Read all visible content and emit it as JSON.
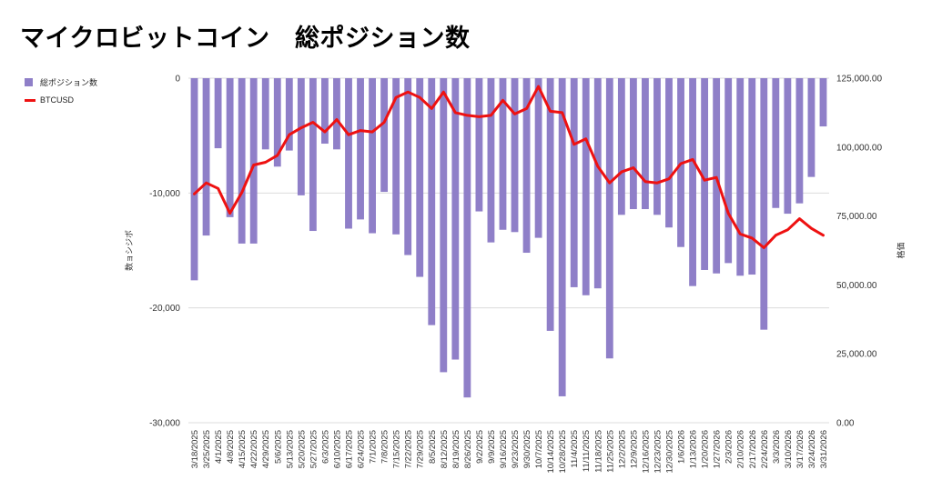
{
  "title": "マイクロビットコイン　総ポジション数",
  "legend": {
    "bar_label": "総ポジション数",
    "line_label": "BTCUSD"
  },
  "colors": {
    "bar": "#8f7fc8",
    "line": "#ee1111",
    "grid": "#dcdcdc",
    "text": "#333333"
  },
  "chart_data": {
    "type": "bar+line",
    "title": "マイクロビットコイン　総ポジション数",
    "xlabel": "",
    "ylabel_left": "数ョシジポ",
    "ylabel_right": "格価",
    "ylim_left": [
      -30000,
      0
    ],
    "ylim_right": [
      0,
      125000
    ],
    "left_ticks": [
      0,
      -10000,
      -20000,
      -30000
    ],
    "left_tick_labels": [
      "0",
      "-10,000",
      "-20,000",
      "-30,000"
    ],
    "right_ticks": [
      125000,
      100000,
      75000,
      50000,
      25000,
      0
    ],
    "right_tick_labels": [
      "125,000.00",
      "100,000.00",
      "75,000.00",
      "50,000.00",
      "25,000.00",
      "0.00"
    ],
    "categories": [
      "3/18/2025",
      "3/25/2025",
      "4/1/2025",
      "4/8/2025",
      "4/15/2025",
      "4/22/2025",
      "4/29/2025",
      "5/6/2025",
      "5/13/2025",
      "5/20/2025",
      "5/27/2025",
      "6/3/2025",
      "6/10/2025",
      "6/17/2025",
      "6/24/2025",
      "7/1/2025",
      "7/8/2025",
      "7/15/2025",
      "7/22/2025",
      "7/29/2025",
      "8/5/2025",
      "8/12/2025",
      "8/19/2025",
      "8/26/2025",
      "9/2/2025",
      "9/9/2025",
      "9/16/2025",
      "9/23/2025",
      "9/30/2025",
      "10/7/2025",
      "10/14/2025",
      "10/28/2025",
      "11/4/2025",
      "11/11/2025",
      "11/18/2025",
      "11/25/2025",
      "12/2/2025",
      "12/9/2025",
      "12/16/2025",
      "12/23/2025",
      "12/30/2025",
      "1/6/2026",
      "1/13/2026",
      "1/20/2026",
      "1/27/2026",
      "2/3/2026",
      "2/10/2026",
      "2/17/2026",
      "2/24/2026",
      "3/3/2026",
      "3/10/2026",
      "3/17/2026",
      "3/24/2026",
      "3/31/2026"
    ],
    "series": [
      {
        "name": "総ポジション数",
        "type": "bar",
        "values": [
          -17600,
          -13700,
          -6100,
          -12100,
          -14400,
          -14400,
          -6200,
          -7700,
          -6300,
          -10200,
          -13300,
          -5700,
          -6200,
          -13100,
          -12300,
          -13500,
          -9900,
          -13600,
          -15400,
          -17300,
          -21500,
          -25600,
          -24500,
          -27800,
          -11600,
          -14300,
          -13200,
          -13400,
          -15200,
          -13900,
          -22000,
          -27700,
          -18200,
          -18900,
          -18300,
          -24400,
          -11900,
          -11400,
          -11400,
          -11900,
          -13000,
          -14700,
          -18100,
          -16700,
          -17000,
          -16100,
          -17200,
          -17100,
          -21900,
          -11300,
          -11800,
          -10900,
          -8600,
          -4200
        ]
      },
      {
        "name": "BTCUSD",
        "type": "line",
        "values": [
          83000,
          87000,
          85000,
          76000,
          83500,
          93500,
          94500,
          97000,
          104500,
          107000,
          109000,
          105500,
          110000,
          104500,
          106000,
          105500,
          109000,
          118000,
          120000,
          118000,
          114000,
          120000,
          112500,
          111500,
          111000,
          111500,
          117000,
          112000,
          114000,
          122000,
          113000,
          112500,
          101000,
          103000,
          93000,
          87000,
          91000,
          92500,
          87500,
          87000,
          88500,
          94000,
          95500,
          88000,
          89000,
          76000,
          68500,
          67000,
          63500,
          68000,
          70000,
          74000,
          70500,
          68000
        ]
      }
    ]
  }
}
